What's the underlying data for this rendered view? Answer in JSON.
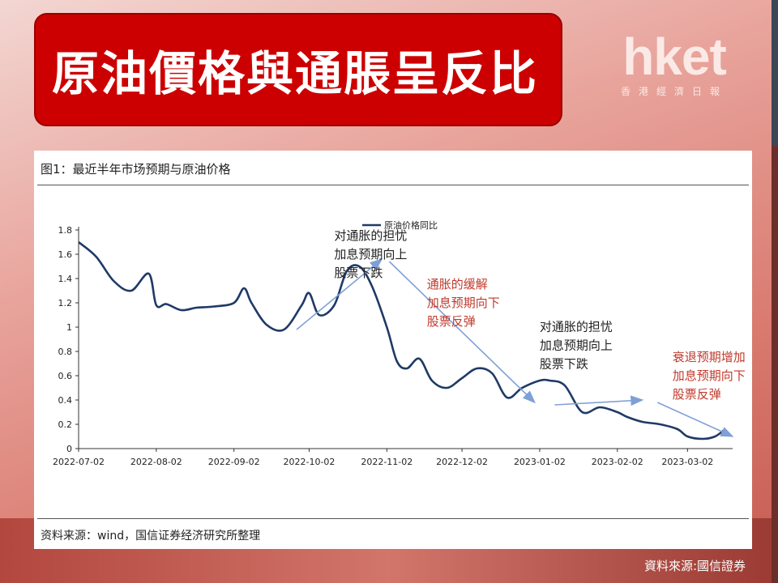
{
  "header": {
    "title": "原油價格與通脹呈反比",
    "logo_main": "hket",
    "logo_sub": "香港經濟日報"
  },
  "panel": {
    "title": "图1：最近半年市场预期与原油价格",
    "source": "资料来源：wind，国信证券经济研究所整理"
  },
  "footer": {
    "source": "資料來源:國信證券"
  },
  "colors": {
    "title_bg": "#cc0000",
    "line": "#1f3a66",
    "arrow": "#7fa0d6",
    "annotation_dark": "#222222",
    "annotation_red": "#c0392b"
  },
  "chart_data": {
    "type": "line",
    "title": "",
    "xlabel": "",
    "ylabel": "",
    "legend": "top-center",
    "ylim": [
      0,
      1.8
    ],
    "yticks": [
      "0",
      "0.2",
      "0.4",
      "0.6",
      "0.8",
      "1",
      "1.2",
      "1.4",
      "1.6",
      "1.8"
    ],
    "xticks": [
      "2022-07-02",
      "2022-08-02",
      "2022-09-02",
      "2022-10-02",
      "2022-11-02",
      "2022-12-02",
      "2023-01-02",
      "2023-02-02",
      "2023-03-02"
    ],
    "series": [
      {
        "name": "原油价格同比",
        "x": [
          "2022-07-02",
          "2022-07-09",
          "2022-07-16",
          "2022-07-23",
          "2022-07-30",
          "2022-08-02",
          "2022-08-06",
          "2022-08-12",
          "2022-08-18",
          "2022-08-25",
          "2022-09-02",
          "2022-09-06",
          "2022-09-09",
          "2022-09-15",
          "2022-09-22",
          "2022-09-29",
          "2022-10-02",
          "2022-10-06",
          "2022-10-12",
          "2022-10-17",
          "2022-10-22",
          "2022-10-27",
          "2022-11-02",
          "2022-11-06",
          "2022-11-10",
          "2022-11-15",
          "2022-11-20",
          "2022-11-26",
          "2022-12-02",
          "2022-12-08",
          "2022-12-14",
          "2022-12-20",
          "2022-12-26",
          "2023-01-02",
          "2023-01-06",
          "2023-01-12",
          "2023-01-19",
          "2023-01-26",
          "2023-02-02",
          "2023-02-06",
          "2023-02-12",
          "2023-02-19",
          "2023-02-26",
          "2023-03-02",
          "2023-03-08",
          "2023-03-13",
          "2023-03-17"
        ],
        "y": [
          1.7,
          1.58,
          1.38,
          1.3,
          1.44,
          1.18,
          1.19,
          1.14,
          1.16,
          1.17,
          1.2,
          1.32,
          1.2,
          1.02,
          0.98,
          1.18,
          1.28,
          1.1,
          1.18,
          1.46,
          1.5,
          1.34,
          1.0,
          0.72,
          0.66,
          0.74,
          0.56,
          0.5,
          0.58,
          0.66,
          0.62,
          0.42,
          0.5,
          0.56,
          0.56,
          0.52,
          0.3,
          0.34,
          0.3,
          0.26,
          0.22,
          0.2,
          0.16,
          0.1,
          0.08,
          0.1,
          0.16
        ]
      }
    ],
    "annotations": [
      {
        "text": [
          "对通胀的担忧",
          "加息预期向上",
          "股票下跌"
        ],
        "color": "dark"
      },
      {
        "text": [
          "通胀的缓解",
          "加息预期向下",
          "股票反弹"
        ],
        "color": "red"
      },
      {
        "text": [
          "对通胀的担忧",
          "加息预期向上",
          "股票下跌"
        ],
        "color": "dark"
      },
      {
        "text": [
          "衰退预期增加",
          "加息预期向下",
          "股票反弹"
        ],
        "color": "red"
      }
    ]
  }
}
